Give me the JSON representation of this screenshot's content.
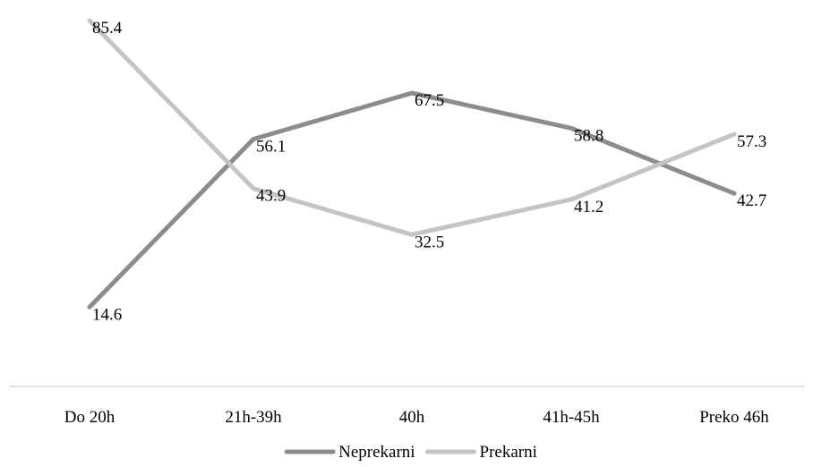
{
  "chart_data": {
    "type": "line",
    "categories": [
      "Do 20h",
      "21h-39h",
      "40h",
      "41h-45h",
      "Preko 46h"
    ],
    "series": [
      {
        "name": "Neprekarni",
        "values": [
          14.6,
          56.1,
          67.5,
          58.8,
          42.7
        ],
        "color": "#8c8c8c"
      },
      {
        "name": "Prekarni",
        "values": [
          85.4,
          43.9,
          32.5,
          41.2,
          57.3
        ],
        "color": "#c4c4c4"
      }
    ],
    "ylim": [
      0,
      90
    ],
    "grid": false,
    "legend_position": "bottom",
    "data_labels": true,
    "axis_line_color": "#d9d9d9"
  }
}
